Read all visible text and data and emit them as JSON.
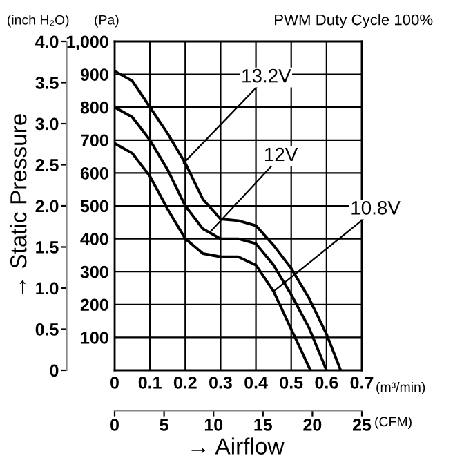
{
  "chart_data": {
    "type": "line",
    "title": "PWM Duty Cycle 100%",
    "xlabel": "→ Airflow",
    "ylabel": "→ Static Pressure",
    "y2label": "(Pa)",
    "x2label": "(CFM)",
    "annotations": [
      {
        "text": "13.2V",
        "x": 0.195,
        "y": 2.52
      },
      {
        "text": "12V",
        "x": 0.27,
        "y": 1.68
      },
      {
        "text": "10.8V",
        "x": 0.45,
        "y": 0.96
      },
      "(inch H₂O)",
      "(m³/min)"
    ],
    "series": [
      {
        "color": "#000000",
        "axis": "y2",
        "x": [
          0,
          0.05,
          0.1,
          0.15,
          0.2,
          0.25,
          0.3,
          0.35,
          0.4,
          0.45,
          0.5,
          0.55,
          0.6,
          0.64
        ],
        "values": [
          910,
          880,
          800,
          720,
          630,
          520,
          460,
          455,
          440,
          380,
          310,
          220,
          110,
          0
        ]
      },
      {
        "color": "#000000",
        "axis": "y2",
        "x": [
          0,
          0.05,
          0.1,
          0.15,
          0.2,
          0.25,
          0.3,
          0.35,
          0.4,
          0.45,
          0.5,
          0.55,
          0.6
        ],
        "values": [
          800,
          770,
          700,
          610,
          500,
          430,
          400,
          400,
          385,
          320,
          230,
          130,
          0
        ]
      },
      {
        "color": "#000000",
        "axis": "y2",
        "x": [
          0,
          0.05,
          0.1,
          0.15,
          0.2,
          0.25,
          0.3,
          0.35,
          0.4,
          0.45,
          0.5,
          0.55,
          0.555
        ],
        "values": [
          690,
          660,
          590,
          490,
          400,
          355,
          345,
          345,
          320,
          240,
          125,
          10,
          0
        ]
      }
    ],
    "xlim": [
      0,
      0.7
    ],
    "xticks": [
      0,
      0.1,
      0.2,
      0.3,
      0.4,
      0.5,
      0.6,
      0.7
    ],
    "y2lim": [
      0,
      1000
    ],
    "y2ticks": [
      {
        "value": 0,
        "label": null
      },
      100,
      200,
      300,
      400,
      500,
      600,
      700,
      800,
      900,
      {
        "value": 1000,
        "label": "1,000"
      }
    ],
    "ylim": [
      0,
      4
    ],
    "yticks": [
      0,
      0.5,
      {
        "value": 1,
        "label": "1.0"
      },
      1.5,
      {
        "value": 2,
        "label": "2.0"
      },
      2.5,
      {
        "value": 3,
        "label": "3.0"
      },
      3.5,
      {
        "value": 4,
        "label": "4.0"
      }
    ],
    "x2lim": [
      0,
      25
    ],
    "x2ticks": [
      0,
      5,
      10,
      15,
      20,
      25
    ],
    "grid": true,
    "line_style": "solid"
  }
}
